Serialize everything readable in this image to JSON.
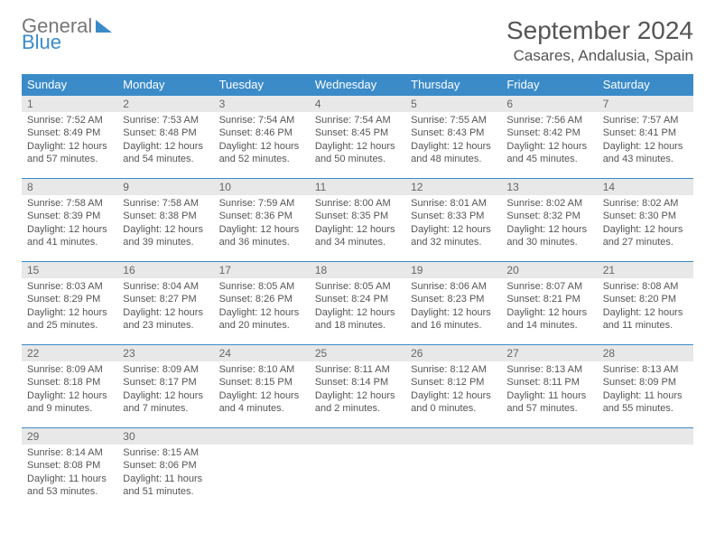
{
  "logo": {
    "line1": "General",
    "line2": "Blue"
  },
  "title": "September 2024",
  "location": "Casares, Andalusia, Spain",
  "headers": [
    "Sunday",
    "Monday",
    "Tuesday",
    "Wednesday",
    "Thursday",
    "Friday",
    "Saturday"
  ],
  "colors": {
    "accent": "#3b8bc9",
    "header_bg": "#3b8bc9",
    "header_text": "#ffffff",
    "daynum_bg": "#e8e8e8",
    "text": "#555555",
    "logo_gray": "#777777"
  },
  "days": [
    {
      "num": "1",
      "sunrise": "Sunrise: 7:52 AM",
      "sunset": "Sunset: 8:49 PM",
      "day1": "Daylight: 12 hours",
      "day2": "and 57 minutes."
    },
    {
      "num": "2",
      "sunrise": "Sunrise: 7:53 AM",
      "sunset": "Sunset: 8:48 PM",
      "day1": "Daylight: 12 hours",
      "day2": "and 54 minutes."
    },
    {
      "num": "3",
      "sunrise": "Sunrise: 7:54 AM",
      "sunset": "Sunset: 8:46 PM",
      "day1": "Daylight: 12 hours",
      "day2": "and 52 minutes."
    },
    {
      "num": "4",
      "sunrise": "Sunrise: 7:54 AM",
      "sunset": "Sunset: 8:45 PM",
      "day1": "Daylight: 12 hours",
      "day2": "and 50 minutes."
    },
    {
      "num": "5",
      "sunrise": "Sunrise: 7:55 AM",
      "sunset": "Sunset: 8:43 PM",
      "day1": "Daylight: 12 hours",
      "day2": "and 48 minutes."
    },
    {
      "num": "6",
      "sunrise": "Sunrise: 7:56 AM",
      "sunset": "Sunset: 8:42 PM",
      "day1": "Daylight: 12 hours",
      "day2": "and 45 minutes."
    },
    {
      "num": "7",
      "sunrise": "Sunrise: 7:57 AM",
      "sunset": "Sunset: 8:41 PM",
      "day1": "Daylight: 12 hours",
      "day2": "and 43 minutes."
    },
    {
      "num": "8",
      "sunrise": "Sunrise: 7:58 AM",
      "sunset": "Sunset: 8:39 PM",
      "day1": "Daylight: 12 hours",
      "day2": "and 41 minutes."
    },
    {
      "num": "9",
      "sunrise": "Sunrise: 7:58 AM",
      "sunset": "Sunset: 8:38 PM",
      "day1": "Daylight: 12 hours",
      "day2": "and 39 minutes."
    },
    {
      "num": "10",
      "sunrise": "Sunrise: 7:59 AM",
      "sunset": "Sunset: 8:36 PM",
      "day1": "Daylight: 12 hours",
      "day2": "and 36 minutes."
    },
    {
      "num": "11",
      "sunrise": "Sunrise: 8:00 AM",
      "sunset": "Sunset: 8:35 PM",
      "day1": "Daylight: 12 hours",
      "day2": "and 34 minutes."
    },
    {
      "num": "12",
      "sunrise": "Sunrise: 8:01 AM",
      "sunset": "Sunset: 8:33 PM",
      "day1": "Daylight: 12 hours",
      "day2": "and 32 minutes."
    },
    {
      "num": "13",
      "sunrise": "Sunrise: 8:02 AM",
      "sunset": "Sunset: 8:32 PM",
      "day1": "Daylight: 12 hours",
      "day2": "and 30 minutes."
    },
    {
      "num": "14",
      "sunrise": "Sunrise: 8:02 AM",
      "sunset": "Sunset: 8:30 PM",
      "day1": "Daylight: 12 hours",
      "day2": "and 27 minutes."
    },
    {
      "num": "15",
      "sunrise": "Sunrise: 8:03 AM",
      "sunset": "Sunset: 8:29 PM",
      "day1": "Daylight: 12 hours",
      "day2": "and 25 minutes."
    },
    {
      "num": "16",
      "sunrise": "Sunrise: 8:04 AM",
      "sunset": "Sunset: 8:27 PM",
      "day1": "Daylight: 12 hours",
      "day2": "and 23 minutes."
    },
    {
      "num": "17",
      "sunrise": "Sunrise: 8:05 AM",
      "sunset": "Sunset: 8:26 PM",
      "day1": "Daylight: 12 hours",
      "day2": "and 20 minutes."
    },
    {
      "num": "18",
      "sunrise": "Sunrise: 8:05 AM",
      "sunset": "Sunset: 8:24 PM",
      "day1": "Daylight: 12 hours",
      "day2": "and 18 minutes."
    },
    {
      "num": "19",
      "sunrise": "Sunrise: 8:06 AM",
      "sunset": "Sunset: 8:23 PM",
      "day1": "Daylight: 12 hours",
      "day2": "and 16 minutes."
    },
    {
      "num": "20",
      "sunrise": "Sunrise: 8:07 AM",
      "sunset": "Sunset: 8:21 PM",
      "day1": "Daylight: 12 hours",
      "day2": "and 14 minutes."
    },
    {
      "num": "21",
      "sunrise": "Sunrise: 8:08 AM",
      "sunset": "Sunset: 8:20 PM",
      "day1": "Daylight: 12 hours",
      "day2": "and 11 minutes."
    },
    {
      "num": "22",
      "sunrise": "Sunrise: 8:09 AM",
      "sunset": "Sunset: 8:18 PM",
      "day1": "Daylight: 12 hours",
      "day2": "and 9 minutes."
    },
    {
      "num": "23",
      "sunrise": "Sunrise: 8:09 AM",
      "sunset": "Sunset: 8:17 PM",
      "day1": "Daylight: 12 hours",
      "day2": "and 7 minutes."
    },
    {
      "num": "24",
      "sunrise": "Sunrise: 8:10 AM",
      "sunset": "Sunset: 8:15 PM",
      "day1": "Daylight: 12 hours",
      "day2": "and 4 minutes."
    },
    {
      "num": "25",
      "sunrise": "Sunrise: 8:11 AM",
      "sunset": "Sunset: 8:14 PM",
      "day1": "Daylight: 12 hours",
      "day2": "and 2 minutes."
    },
    {
      "num": "26",
      "sunrise": "Sunrise: 8:12 AM",
      "sunset": "Sunset: 8:12 PM",
      "day1": "Daylight: 12 hours",
      "day2": "and 0 minutes."
    },
    {
      "num": "27",
      "sunrise": "Sunrise: 8:13 AM",
      "sunset": "Sunset: 8:11 PM",
      "day1": "Daylight: 11 hours",
      "day2": "and 57 minutes."
    },
    {
      "num": "28",
      "sunrise": "Sunrise: 8:13 AM",
      "sunset": "Sunset: 8:09 PM",
      "day1": "Daylight: 11 hours",
      "day2": "and 55 minutes."
    },
    {
      "num": "29",
      "sunrise": "Sunrise: 8:14 AM",
      "sunset": "Sunset: 8:08 PM",
      "day1": "Daylight: 11 hours",
      "day2": "and 53 minutes."
    },
    {
      "num": "30",
      "sunrise": "Sunrise: 8:15 AM",
      "sunset": "Sunset: 8:06 PM",
      "day1": "Daylight: 11 hours",
      "day2": "and 51 minutes."
    }
  ]
}
